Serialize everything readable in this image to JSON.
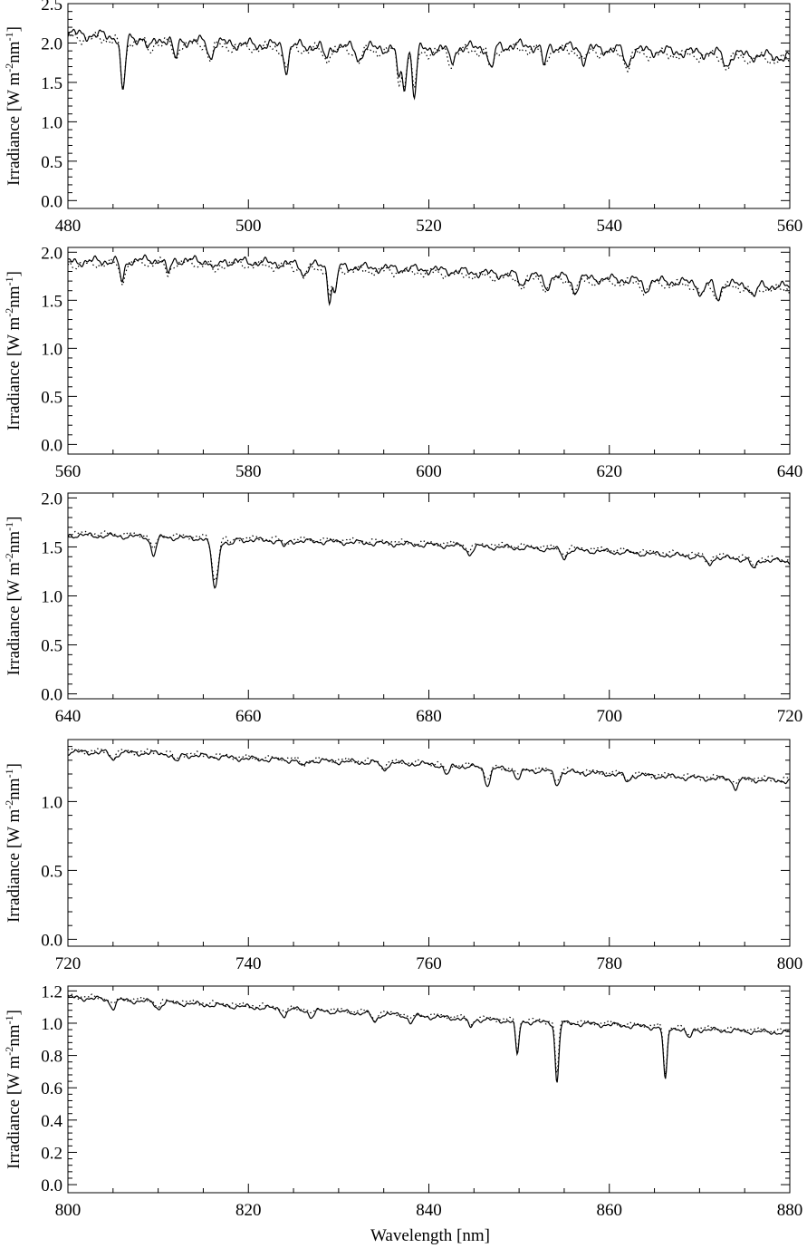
{
  "figure": {
    "xlabel": "Wavelength [nm]",
    "ylabel_parts": [
      "Irradiance [W m",
      "-2",
      "nm",
      "-1",
      "]"
    ]
  },
  "chart_data": [
    {
      "type": "line",
      "xlim": [
        480,
        560
      ],
      "ylim": [
        -0.1,
        2.5
      ],
      "xticks": [
        480,
        500,
        520,
        540,
        560
      ],
      "yticks": [
        0.0,
        0.5,
        1.0,
        1.5,
        2.0,
        2.5
      ],
      "ytick_decimals": 1,
      "continuum": [
        [
          480,
          2.12
        ],
        [
          490,
          2.05
        ],
        [
          500,
          1.98
        ],
        [
          510,
          1.95
        ],
        [
          520,
          1.92
        ],
        [
          530,
          1.97
        ],
        [
          540,
          1.92
        ],
        [
          550,
          1.88
        ],
        [
          560,
          1.82
        ]
      ],
      "lines": [
        [
          486.1,
          0.72,
          0.25
        ],
        [
          489.0,
          0.15,
          0.3
        ],
        [
          491.9,
          0.25,
          0.25
        ],
        [
          495.8,
          0.2,
          0.25
        ],
        [
          504.2,
          0.3,
          0.25
        ],
        [
          508.6,
          0.15,
          0.3
        ],
        [
          512.3,
          0.15,
          0.3
        ],
        [
          516.7,
          0.42,
          0.22
        ],
        [
          517.3,
          0.5,
          0.2
        ],
        [
          518.4,
          0.6,
          0.22
        ],
        [
          522.5,
          0.2,
          0.25
        ],
        [
          526.9,
          0.3,
          0.3
        ],
        [
          532.8,
          0.25,
          0.25
        ],
        [
          537.2,
          0.15,
          0.3
        ],
        [
          542.0,
          0.2,
          0.3
        ],
        [
          553.0,
          0.15,
          0.3
        ]
      ],
      "ripple": 0.09,
      "dot_offset": -0.04,
      "series": [
        {
          "name": "",
          "style": "solid"
        },
        {
          "name": "",
          "style": "dotted"
        }
      ]
    },
    {
      "type": "line",
      "xlim": [
        560,
        640
      ],
      "ylim": [
        -0.1,
        2.05
      ],
      "xticks": [
        560,
        580,
        600,
        620,
        640
      ],
      "yticks": [
        0.0,
        0.5,
        1.0,
        1.5,
        2.0
      ],
      "ytick_decimals": 1,
      "continuum": [
        [
          560,
          1.9
        ],
        [
          570,
          1.92
        ],
        [
          580,
          1.9
        ],
        [
          590,
          1.85
        ],
        [
          600,
          1.82
        ],
        [
          610,
          1.76
        ],
        [
          620,
          1.72
        ],
        [
          630,
          1.68
        ],
        [
          640,
          1.64
        ]
      ],
      "lines": [
        [
          566.0,
          0.22,
          0.25
        ],
        [
          571.1,
          0.15,
          0.25
        ],
        [
          576.3,
          0.1,
          0.3
        ],
        [
          586.2,
          0.1,
          0.3
        ],
        [
          589.0,
          0.35,
          0.2
        ],
        [
          589.6,
          0.3,
          0.2
        ],
        [
          610.3,
          0.1,
          0.3
        ],
        [
          613.0,
          0.12,
          0.3
        ],
        [
          616.2,
          0.15,
          0.3
        ],
        [
          624.0,
          0.1,
          0.3
        ],
        [
          630.2,
          0.12,
          0.3
        ],
        [
          632.0,
          0.15,
          0.3
        ],
        [
          636.0,
          0.12,
          0.3
        ]
      ],
      "ripple": 0.06,
      "dot_offset": -0.03,
      "series": [
        {
          "name": "",
          "style": "solid"
        },
        {
          "name": "",
          "style": "dotted"
        }
      ]
    },
    {
      "type": "line",
      "xlim": [
        640,
        720
      ],
      "ylim": [
        -0.05,
        2.05
      ],
      "xticks": [
        640,
        660,
        680,
        700,
        720
      ],
      "yticks": [
        0.0,
        0.5,
        1.0,
        1.5,
        2.0
      ],
      "ytick_decimals": 1,
      "continuum": [
        [
          640,
          1.62
        ],
        [
          650,
          1.6
        ],
        [
          660,
          1.57
        ],
        [
          670,
          1.55
        ],
        [
          680,
          1.52
        ],
        [
          690,
          1.49
        ],
        [
          700,
          1.45
        ],
        [
          710,
          1.4
        ],
        [
          720,
          1.35
        ]
      ],
      "lines": [
        [
          649.5,
          0.18,
          0.3
        ],
        [
          656.3,
          0.5,
          0.35
        ],
        [
          658.0,
          0.07,
          0.3
        ],
        [
          664.0,
          0.06,
          0.3
        ],
        [
          684.5,
          0.08,
          0.3
        ],
        [
          695.0,
          0.08,
          0.3
        ],
        [
          711.0,
          0.08,
          0.3
        ],
        [
          716.0,
          0.1,
          0.3
        ]
      ],
      "ripple": 0.035,
      "dot_offset": 0.02,
      "series": [
        {
          "name": "",
          "style": "solid"
        },
        {
          "name": "",
          "style": "dotted"
        }
      ]
    },
    {
      "type": "line",
      "xlim": [
        720,
        800
      ],
      "ylim": [
        -0.05,
        1.45
      ],
      "xticks": [
        720,
        740,
        760,
        780,
        800
      ],
      "yticks": [
        0.0,
        0.5,
        1.0
      ],
      "ytick_decimals": 1,
      "continuum": [
        [
          720,
          1.36
        ],
        [
          730,
          1.35
        ],
        [
          740,
          1.31
        ],
        [
          750,
          1.29
        ],
        [
          760,
          1.27
        ],
        [
          770,
          1.23
        ],
        [
          780,
          1.2
        ],
        [
          790,
          1.17
        ],
        [
          800,
          1.15
        ]
      ],
      "lines": [
        [
          725.0,
          0.05,
          0.3
        ],
        [
          732.0,
          0.06,
          0.3
        ],
        [
          746.0,
          0.05,
          0.3
        ],
        [
          755.0,
          0.05,
          0.3
        ],
        [
          762.0,
          0.07,
          0.3
        ],
        [
          766.5,
          0.12,
          0.3
        ],
        [
          769.9,
          0.07,
          0.3
        ],
        [
          774.2,
          0.09,
          0.3
        ],
        [
          782.0,
          0.05,
          0.3
        ],
        [
          794.0,
          0.06,
          0.3
        ]
      ],
      "ripple": 0.025,
      "dot_offset": 0.01,
      "series": [
        {
          "name": "",
          "style": "solid"
        },
        {
          "name": "",
          "style": "dotted"
        }
      ]
    },
    {
      "type": "line",
      "xlim": [
        800,
        880
      ],
      "ylim": [
        -0.05,
        1.23
      ],
      "xticks": [
        800,
        820,
        840,
        860,
        880
      ],
      "yticks": [
        0.0,
        0.2,
        0.4,
        0.6,
        0.8,
        1.0,
        1.2
      ],
      "ytick_decimals": 1,
      "continuum": [
        [
          800,
          1.16
        ],
        [
          810,
          1.13
        ],
        [
          820,
          1.1
        ],
        [
          830,
          1.07
        ],
        [
          840,
          1.04
        ],
        [
          850,
          1.01
        ],
        [
          860,
          0.99
        ],
        [
          870,
          0.96
        ],
        [
          880,
          0.94
        ]
      ],
      "lines": [
        [
          805.0,
          0.05,
          0.3
        ],
        [
          810.0,
          0.04,
          0.3
        ],
        [
          824.0,
          0.04,
          0.3
        ],
        [
          827.0,
          0.04,
          0.3
        ],
        [
          834.0,
          0.05,
          0.3
        ],
        [
          838.0,
          0.04,
          0.3
        ],
        [
          844.6,
          0.05,
          0.3
        ],
        [
          849.8,
          0.22,
          0.18
        ],
        [
          854.2,
          0.37,
          0.2
        ],
        [
          866.2,
          0.33,
          0.2
        ],
        [
          868.8,
          0.06,
          0.3
        ]
      ],
      "ripple": 0.02,
      "dot_offset": 0.01,
      "series": [
        {
          "name": "",
          "style": "solid"
        },
        {
          "name": "",
          "style": "dotted"
        }
      ]
    }
  ]
}
